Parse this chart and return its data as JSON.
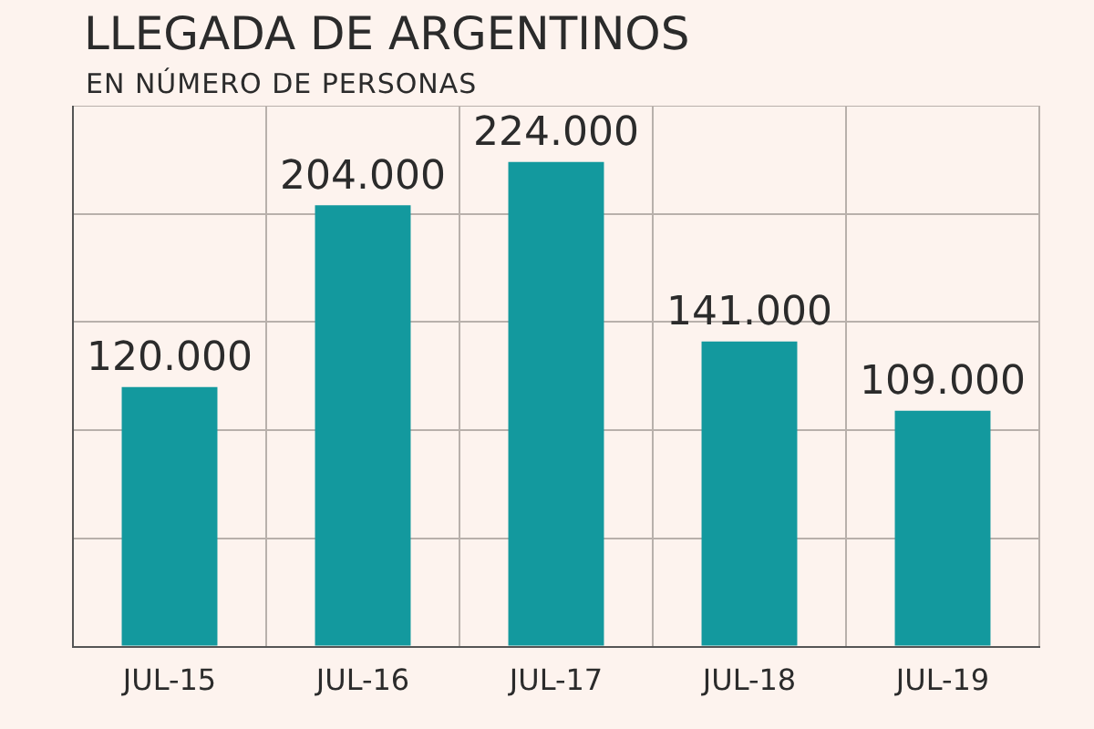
{
  "chart_data": {
    "type": "bar",
    "title": "LLEGADA DE ARGENTINOS",
    "subtitle": "EN NÚMERO DE PERSONAS",
    "categories": [
      "JUL-15",
      "JUL-16",
      "JUL-17",
      "JUL-18",
      "JUL-19"
    ],
    "values": [
      120000,
      204000,
      224000,
      141000,
      109000
    ],
    "value_labels": [
      "120.000",
      "204.000",
      "224.000",
      "141.000",
      "109.000"
    ],
    "color": "#13999e",
    "grid": true,
    "tick_labels": "x"
  }
}
